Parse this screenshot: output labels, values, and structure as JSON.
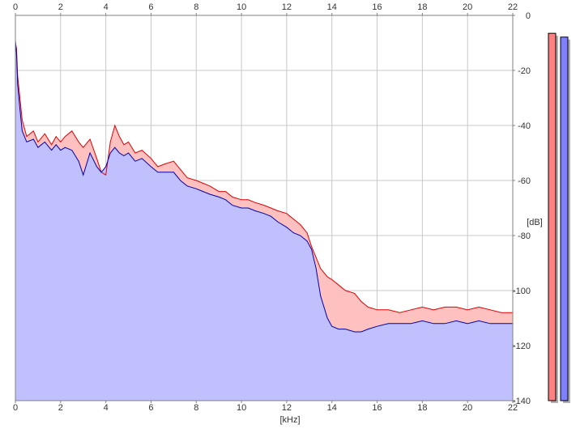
{
  "chart_data": {
    "type": "area",
    "title": "",
    "xlabel": "[kHz]",
    "ylabel": "[dB]",
    "xlim": [
      0,
      22
    ],
    "ylim": [
      -140,
      0
    ],
    "x_ticks": [
      0,
      2,
      4,
      6,
      8,
      10,
      12,
      14,
      16,
      18,
      20,
      22
    ],
    "y_ticks": [
      0,
      -20,
      -40,
      -60,
      -80,
      -100,
      -120,
      -140
    ],
    "grid": true,
    "legend": "none",
    "series": [
      {
        "color": "#e00000",
        "fill": "#ffc0c0",
        "x": [
          0,
          0.05,
          0.1,
          0.2,
          0.3,
          0.5,
          0.8,
          1.0,
          1.3,
          1.6,
          1.8,
          2.0,
          2.2,
          2.5,
          2.8,
          3.0,
          3.3,
          3.6,
          3.8,
          4.0,
          4.2,
          4.4,
          4.6,
          4.8,
          5.0,
          5.3,
          5.6,
          6.0,
          6.3,
          6.6,
          7.0,
          7.3,
          7.6,
          8.0,
          8.3,
          8.6,
          9.0,
          9.3,
          9.6,
          10.0,
          10.3,
          10.6,
          11.0,
          11.3,
          11.6,
          12.0,
          12.3,
          12.6,
          12.9,
          13.1,
          13.3,
          13.5,
          13.8,
          14.0,
          14.3,
          14.6,
          15.0,
          15.3,
          15.6,
          16.0,
          16.5,
          17.0,
          17.5,
          18.0,
          18.5,
          19.0,
          19.5,
          20.0,
          20.5,
          21.0,
          21.5,
          22.0
        ],
        "values": [
          -10,
          -12,
          -22,
          -30,
          -38,
          -44,
          -42,
          -46,
          -43,
          -47,
          -44,
          -46,
          -44,
          -42,
          -46,
          -48,
          -45,
          -52,
          -57,
          -58,
          -46,
          -40,
          -44,
          -47,
          -46,
          -50,
          -49,
          -52,
          -55,
          -54,
          -53,
          -56,
          -59,
          -60,
          -61,
          -62,
          -64,
          -64,
          -66,
          -67,
          -67,
          -68,
          -69,
          -70,
          -71,
          -72,
          -74,
          -76,
          -79,
          -84,
          -88,
          -92,
          -95,
          -96,
          -98,
          -100,
          -101,
          -104,
          -106,
          -107,
          -107,
          -108,
          -107,
          -106,
          -107,
          -106,
          -106,
          -107,
          -106,
          -107,
          -108,
          -108
        ]
      },
      {
        "color": "#0000b0",
        "fill": "#c0c0ff",
        "x": [
          0,
          0.05,
          0.1,
          0.2,
          0.3,
          0.5,
          0.8,
          1.0,
          1.3,
          1.6,
          1.8,
          2.0,
          2.2,
          2.5,
          2.8,
          3.0,
          3.3,
          3.6,
          3.8,
          4.0,
          4.2,
          4.4,
          4.6,
          4.8,
          5.0,
          5.3,
          5.6,
          6.0,
          6.3,
          6.6,
          7.0,
          7.3,
          7.6,
          8.0,
          8.3,
          8.6,
          9.0,
          9.3,
          9.6,
          10.0,
          10.3,
          10.6,
          11.0,
          11.3,
          11.6,
          12.0,
          12.3,
          12.6,
          12.9,
          13.1,
          13.3,
          13.5,
          13.8,
          14.0,
          14.3,
          14.6,
          15.0,
          15.3,
          15.6,
          16.0,
          16.5,
          17.0,
          17.5,
          18.0,
          18.5,
          19.0,
          19.5,
          20.0,
          20.5,
          21.0,
          21.5,
          22.0
        ],
        "values": [
          -9,
          -14,
          -25,
          -34,
          -42,
          -46,
          -45,
          -48,
          -46,
          -49,
          -47,
          -49,
          -48,
          -49,
          -53,
          -58,
          -50,
          -55,
          -57,
          -55,
          -50,
          -48,
          -50,
          -51,
          -50,
          -53,
          -52,
          -55,
          -57,
          -57,
          -57,
          -60,
          -62,
          -63,
          -64,
          -65,
          -66,
          -67,
          -69,
          -70,
          -70,
          -71,
          -72,
          -73,
          -75,
          -77,
          -79,
          -80,
          -82,
          -85,
          -92,
          -102,
          -110,
          -113,
          -114,
          -114,
          -115,
          -115,
          -114,
          -113,
          -112,
          -112,
          -112,
          -111,
          -112,
          -112,
          -111,
          -112,
          -111,
          -112,
          -112,
          -112
        ]
      }
    ],
    "level_meters": [
      {
        "color": "#ff8080",
        "level": 0.976
      },
      {
        "color": "#8080ff",
        "level": 0.966
      }
    ]
  }
}
